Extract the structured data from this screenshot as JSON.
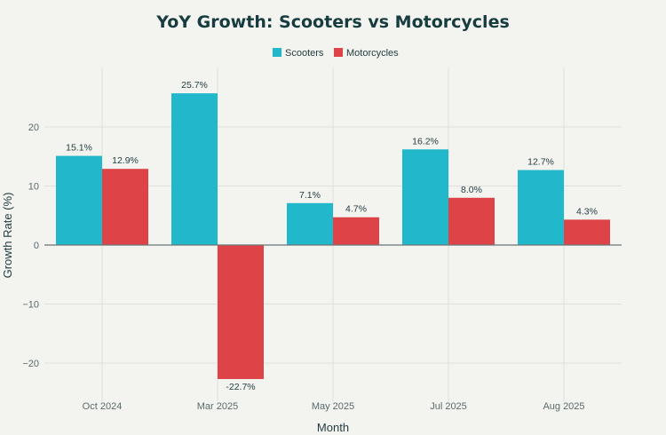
{
  "chart_data": {
    "type": "bar",
    "title": "YoY Growth: Scooters vs Motorcycles",
    "xlabel": "Month",
    "ylabel": "Growth Rate (%)",
    "categories": [
      "Oct 2024",
      "Mar 2025",
      "May 2025",
      "Jul 2025",
      "Aug 2025"
    ],
    "series": [
      {
        "name": "Scooters",
        "color": "#21b8cb",
        "values": [
          15.1,
          25.7,
          7.1,
          16.2,
          12.7
        ],
        "labels": [
          "15.1%",
          "25.7%",
          "7.1%",
          "16.2%",
          "12.7%"
        ]
      },
      {
        "name": "Motorcycles",
        "color": "#dd4347",
        "values": [
          12.9,
          -22.7,
          4.7,
          8.0,
          4.3
        ],
        "labels": [
          "12.9%",
          "-22.7%",
          "4.7%",
          "8.0%",
          "4.3%"
        ]
      }
    ],
    "ylim": [
      -25,
      30
    ],
    "yticks": [
      -20,
      -10,
      0,
      10,
      20
    ],
    "ytick_labels": [
      "−20",
      "−10",
      "0",
      "10",
      "20"
    ],
    "grid": true,
    "legend_position": "top-center"
  }
}
